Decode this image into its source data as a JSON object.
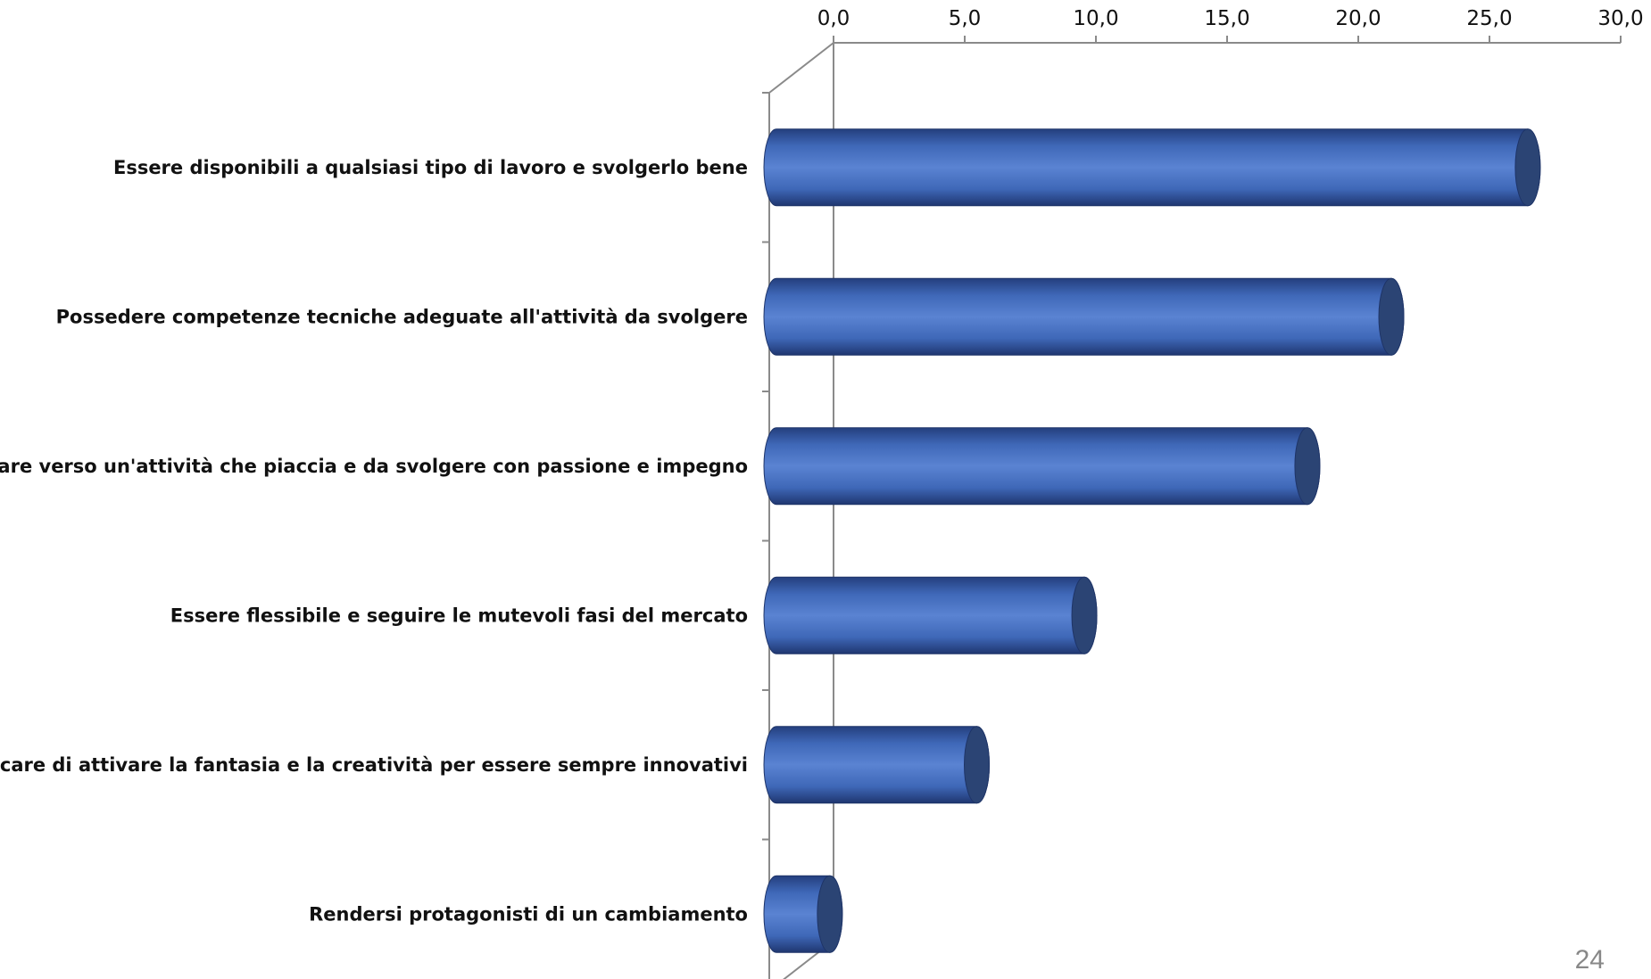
{
  "chart_data": {
    "type": "bar",
    "orientation": "horizontal",
    "style": "3d-cylinder",
    "categories": [
      "Essere disponibili a qualsiasi tipo di lavoro e svolgerlo bene",
      "Possedere competenze tecniche adeguate all'attività da svolgere",
      "Puntare verso un'attività che piaccia e da svolgere con passione e impegno",
      "Essere flessibile e seguire le mutevoli fasi del mercato",
      "Cercare di attivare la fantasia e la creatività per essere sempre innovativi",
      "Rendersi protagonisti di un cambiamento"
    ],
    "values": [
      28.5,
      23.3,
      20.1,
      11.6,
      7.5,
      1.9
    ],
    "xlim": [
      0,
      30
    ],
    "ticks": [
      "0,0",
      "5,0",
      "10,0",
      "15,0",
      "20,0",
      "25,0",
      "30,0"
    ],
    "axis_position": "top",
    "legend": "none",
    "grid": false,
    "colors": {
      "bar": "#4a72c0",
      "bar_dark": "#223c78",
      "cap": "#2b4474",
      "axis": "#8a8a8a"
    }
  },
  "page_number": "24"
}
